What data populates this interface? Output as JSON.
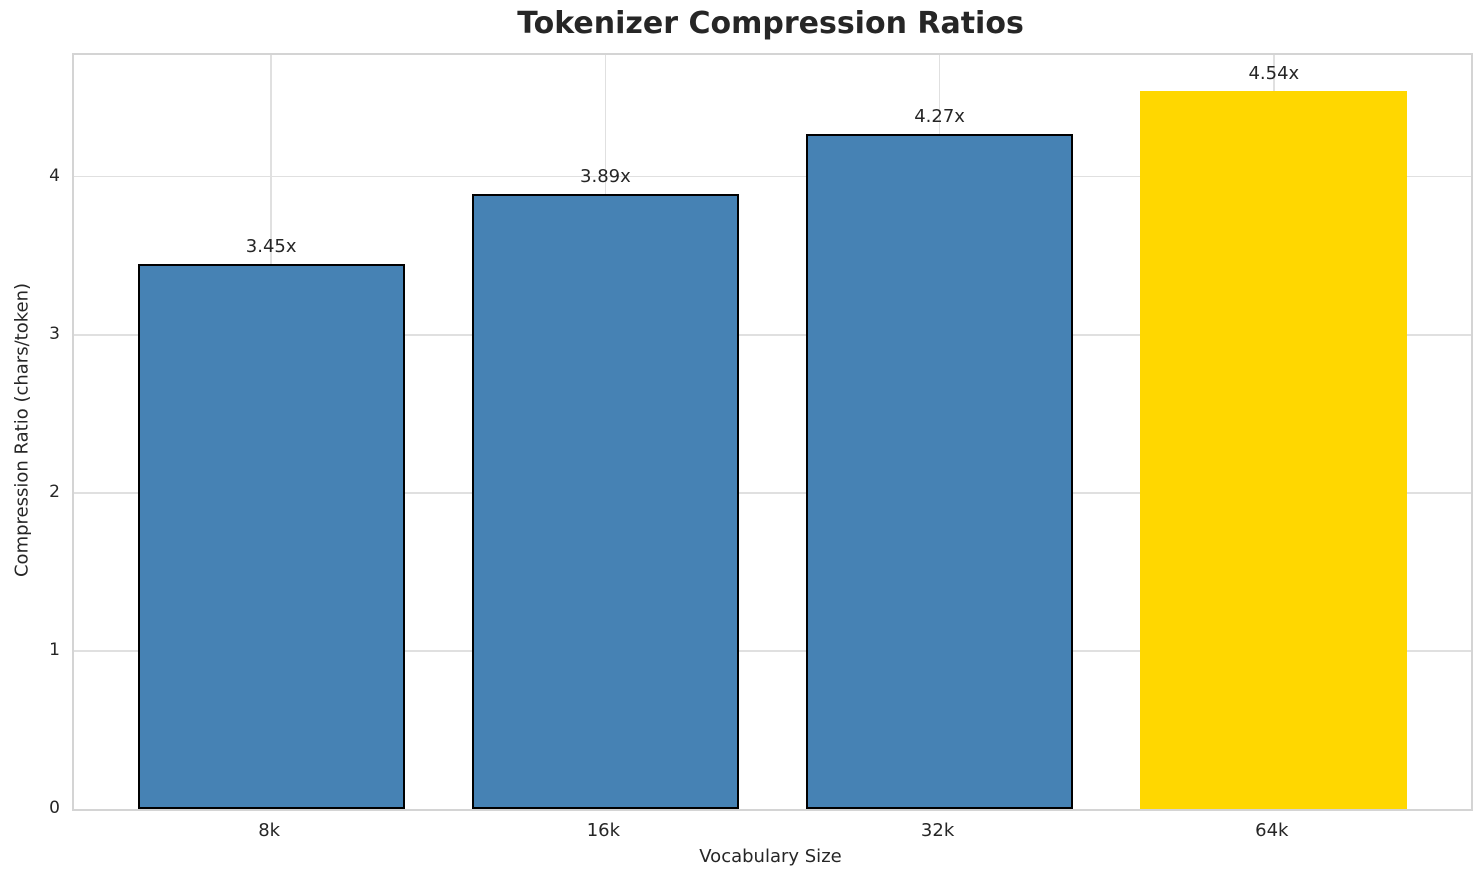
{
  "chart_data": {
    "type": "bar",
    "title": "Tokenizer Compression Ratios",
    "xlabel": "Vocabulary Size",
    "ylabel": "Compression Ratio (chars/token)",
    "categories": [
      "8k",
      "16k",
      "32k",
      "64k"
    ],
    "values": [
      3.45,
      3.89,
      4.27,
      4.54
    ],
    "bar_labels": [
      "3.45x",
      "3.89x",
      "4.27x",
      "4.54x"
    ],
    "bar_colors": [
      "#4682B4",
      "#4682B4",
      "#4682B4",
      "#FFD700"
    ],
    "bar_edge_colors": [
      "#000000",
      "#000000",
      "#000000",
      "none"
    ],
    "yticks": [
      0,
      1,
      2,
      3,
      4
    ],
    "ylim": [
      0,
      4.77
    ],
    "xlim": [
      -0.59,
      3.59
    ],
    "bar_width": 0.8,
    "grid": true,
    "legend_position": "none",
    "colors": {
      "default_bar": "#4682B4",
      "highlight_bar": "#FFD700",
      "bar_edge": "#000000",
      "grid": "#e0e0e0",
      "spine": "#d4d4d4",
      "text": "#262626"
    }
  }
}
